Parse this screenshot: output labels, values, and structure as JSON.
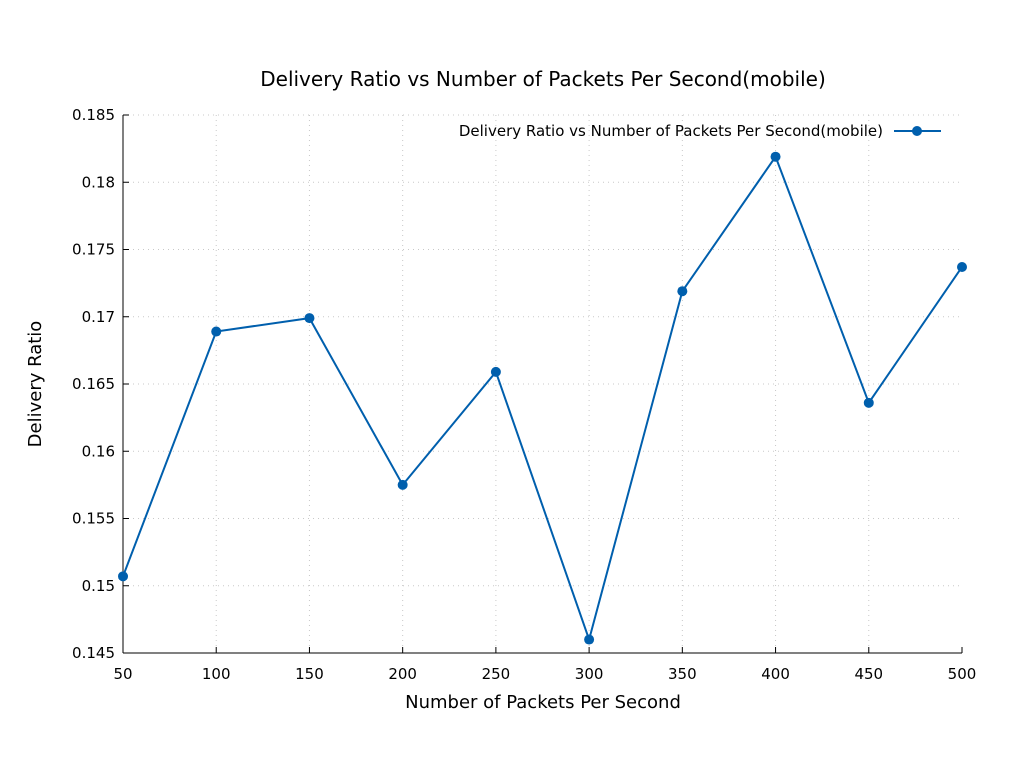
{
  "chart_data": {
    "type": "line",
    "title": "Delivery Ratio vs Number of Packets Per Second(mobile)",
    "xlabel": "Number of Packets Per Second",
    "ylabel": "Delivery Ratio",
    "xlim": [
      50,
      500
    ],
    "ylim": [
      0.145,
      0.185
    ],
    "xticks": [
      50,
      100,
      150,
      200,
      250,
      300,
      350,
      400,
      450,
      500
    ],
    "xtick_labels": [
      "50",
      "100",
      "150",
      "200",
      "250",
      "300",
      "350",
      "400",
      "450",
      "500"
    ],
    "yticks": [
      0.145,
      0.15,
      0.155,
      0.16,
      0.165,
      0.17,
      0.175,
      0.18,
      0.185
    ],
    "ytick_labels": [
      "0.145",
      "0.15",
      "0.155",
      "0.16",
      "0.165",
      "0.17",
      "0.175",
      "0.18",
      "0.185"
    ],
    "grid": true,
    "legend_position": "top-right",
    "series": [
      {
        "name": "Delivery Ratio vs Number of Packets Per Second(mobile)",
        "color": "#005fad",
        "marker": "circle",
        "x": [
          50,
          100,
          150,
          200,
          250,
          300,
          350,
          400,
          450,
          500
        ],
        "values": [
          0.1507,
          0.1689,
          0.1699,
          0.1575,
          0.1659,
          0.146,
          0.1719,
          0.1819,
          0.1636,
          0.1737
        ]
      }
    ]
  }
}
